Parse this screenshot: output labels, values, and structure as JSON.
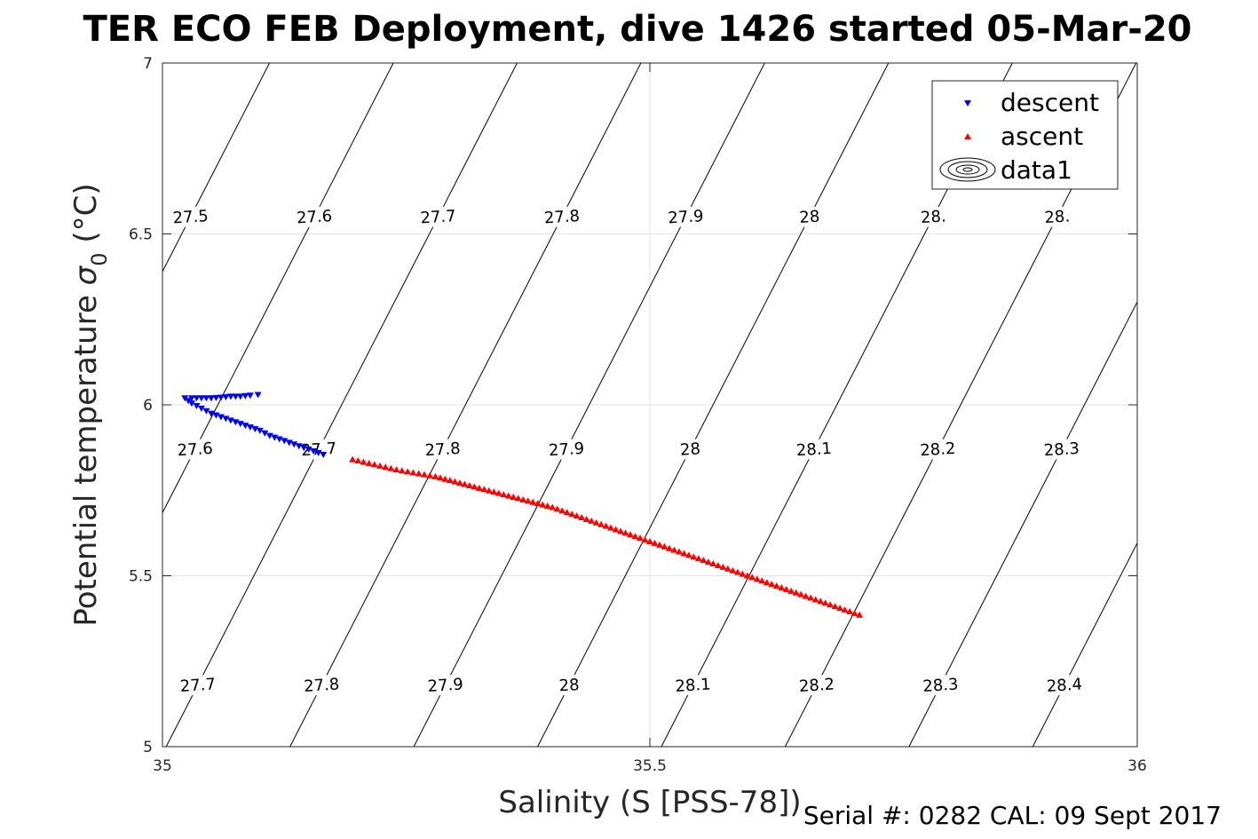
{
  "chart_data": {
    "type": "scatter",
    "title": "TER ECO FEB Deployment, dive 1426 started 05-Mar-20",
    "xlabel": "Salinity (S [PSS-78])",
    "ylabel_main": "Potential temperature ",
    "ylabel_sigma": "σ",
    "ylabel_sub": "0",
    "ylabel_unit": " (°C)",
    "xlim": [
      35,
      36
    ],
    "ylim": [
      5,
      7
    ],
    "xticks": [
      "35",
      "35.5",
      "36"
    ],
    "yticks": [
      "5",
      "5.5",
      "6",
      "6.5",
      "7"
    ],
    "grid": true,
    "legend_position": "top-right",
    "contours": {
      "levels": [
        27.5,
        27.6,
        27.7,
        27.8,
        27.9,
        28.0,
        28.1,
        28.2,
        28.3,
        28.4
      ],
      "labels_upper": [
        "27.5",
        "27.6",
        "27.7",
        "27.8",
        "27.9",
        "28",
        "28.",
        "28."
      ],
      "labels_middle": [
        "27.6",
        "27.7",
        "27.8",
        "27.9",
        "28",
        "28.1",
        "28.2",
        "28.3"
      ],
      "labels_lower": [
        "27.7",
        "27.8",
        "27.9",
        "28",
        "28.1",
        "28.2",
        "28.3",
        "28.4"
      ]
    },
    "series": [
      {
        "name": "descent",
        "marker": "triangle-down",
        "color": "#0000ff",
        "x": [
          35.098,
          35.09,
          35.08,
          35.07,
          35.06,
          35.05,
          35.04,
          35.03,
          35.023,
          35.03,
          35.04,
          35.05,
          35.06,
          35.07,
          35.08,
          35.09,
          35.1,
          35.11,
          35.12,
          35.13,
          35.14,
          35.15,
          35.16,
          35.17
        ],
        "y": [
          6.03,
          6.028,
          6.025,
          6.025,
          6.022,
          6.02,
          6.02,
          6.02,
          6.02,
          6.005,
          5.99,
          5.975,
          5.965,
          5.955,
          5.945,
          5.935,
          5.925,
          5.91,
          5.9,
          5.89,
          5.88,
          5.87,
          5.86,
          5.85
        ]
      },
      {
        "name": "ascent",
        "marker": "triangle-up",
        "color": "#ff0000",
        "x": [
          35.195,
          35.24,
          35.28,
          35.32,
          35.36,
          35.4,
          35.44,
          35.48,
          35.52,
          35.56,
          35.6,
          35.64,
          35.68,
          35.72
        ],
        "y": [
          5.84,
          5.81,
          5.79,
          5.76,
          5.73,
          5.7,
          5.66,
          5.62,
          5.58,
          5.54,
          5.5,
          5.46,
          5.42,
          5.38
        ]
      }
    ],
    "legend": [
      "descent",
      "ascent",
      "data1"
    ]
  },
  "footer": "Serial #: 0282  CAL: 09 Sept 2017"
}
